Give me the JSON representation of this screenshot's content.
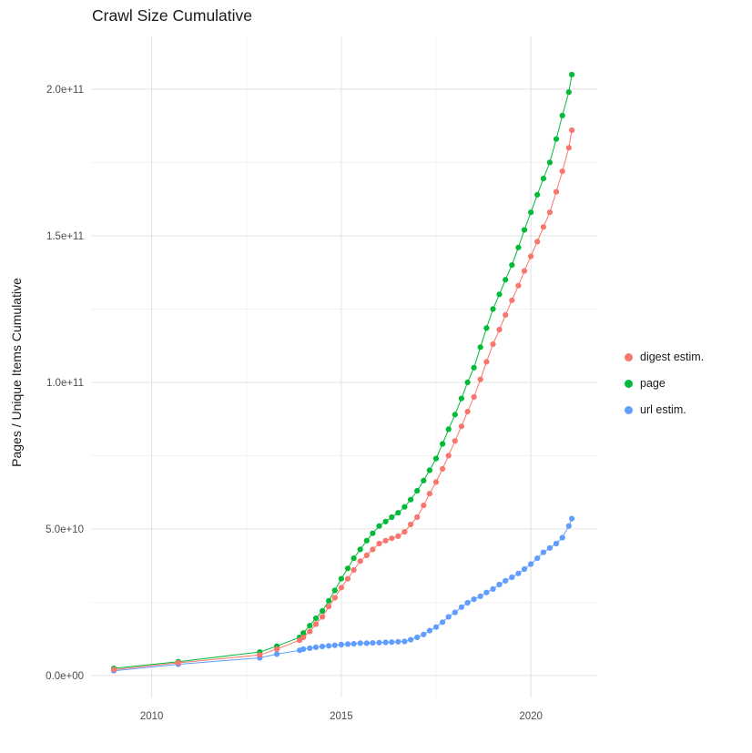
{
  "chart_data": {
    "type": "line",
    "title": "Crawl Size Cumulative",
    "xlabel": "",
    "ylabel": "Pages / Unique Items Cumulative",
    "x_ticks": [
      2010,
      2015,
      2020
    ],
    "x_tick_labels": [
      "2010",
      "2015",
      "2020"
    ],
    "x_minor": [
      2012.5,
      2017.5
    ],
    "y_ticks_e9": [
      0,
      50,
      100,
      150,
      200
    ],
    "y_tick_labels": [
      "0.0e+00",
      "5.0e+10",
      "1.0e+11",
      "1.5e+11",
      "2.0e+11"
    ],
    "y_minor_e9": [
      25,
      75,
      125,
      175
    ],
    "x_range": [
      2008.4,
      2021.75
    ],
    "y_range_e9": [
      -7.5,
      218
    ],
    "unit": "y values in units of 1e9 (billions of pages / unique items)",
    "grid": true,
    "grid_color": "#E4E4E4",
    "grid_minor_color": "#F0F0F0",
    "background": "#FFFFFF",
    "legend_position": "right",
    "series": [
      {
        "name": "digest estim.",
        "color": "#F8766D",
        "points": [
          [
            2009.0,
            2.0
          ],
          [
            2010.7,
            4.3
          ],
          [
            2012.85,
            7.0
          ],
          [
            2013.3,
            9.0
          ],
          [
            2013.9,
            12
          ],
          [
            2014.0,
            13
          ],
          [
            2014.17,
            15
          ],
          [
            2014.33,
            17.5
          ],
          [
            2014.5,
            20
          ],
          [
            2014.67,
            23.5
          ],
          [
            2014.83,
            26.5
          ],
          [
            2015.0,
            30
          ],
          [
            2015.17,
            33
          ],
          [
            2015.33,
            36
          ],
          [
            2015.5,
            39
          ],
          [
            2015.67,
            41
          ],
          [
            2015.83,
            43
          ],
          [
            2016.0,
            45
          ],
          [
            2016.17,
            46
          ],
          [
            2016.33,
            46.8
          ],
          [
            2016.5,
            47.5
          ],
          [
            2016.67,
            49
          ],
          [
            2016.83,
            51.5
          ],
          [
            2017.0,
            54
          ],
          [
            2017.17,
            58
          ],
          [
            2017.33,
            62
          ],
          [
            2017.5,
            66
          ],
          [
            2017.67,
            70.5
          ],
          [
            2017.83,
            75
          ],
          [
            2018.0,
            80
          ],
          [
            2018.17,
            85
          ],
          [
            2018.33,
            90
          ],
          [
            2018.5,
            95
          ],
          [
            2018.67,
            101
          ],
          [
            2018.83,
            107
          ],
          [
            2019.0,
            113
          ],
          [
            2019.17,
            118
          ],
          [
            2019.33,
            123
          ],
          [
            2019.5,
            128
          ],
          [
            2019.67,
            133
          ],
          [
            2019.83,
            138
          ],
          [
            2020.0,
            143
          ],
          [
            2020.17,
            148
          ],
          [
            2020.33,
            153
          ],
          [
            2020.5,
            158
          ],
          [
            2020.67,
            165
          ],
          [
            2020.83,
            172
          ],
          [
            2021.0,
            180
          ],
          [
            2021.08,
            186
          ]
        ]
      },
      {
        "name": "page",
        "color": "#00BA38",
        "points": [
          [
            2009.0,
            2.4
          ],
          [
            2010.7,
            4.7
          ],
          [
            2012.85,
            8.0
          ],
          [
            2013.3,
            10.0
          ],
          [
            2013.9,
            13
          ],
          [
            2014.0,
            14.5
          ],
          [
            2014.17,
            17
          ],
          [
            2014.33,
            19.5
          ],
          [
            2014.5,
            22
          ],
          [
            2014.67,
            25.5
          ],
          [
            2014.83,
            29
          ],
          [
            2015.0,
            33
          ],
          [
            2015.17,
            36.5
          ],
          [
            2015.33,
            40
          ],
          [
            2015.5,
            43
          ],
          [
            2015.67,
            46
          ],
          [
            2015.83,
            48.5
          ],
          [
            2016.0,
            51
          ],
          [
            2016.17,
            52.5
          ],
          [
            2016.33,
            54
          ],
          [
            2016.5,
            55.5
          ],
          [
            2016.67,
            57.5
          ],
          [
            2016.83,
            60
          ],
          [
            2017.0,
            63
          ],
          [
            2017.17,
            66.5
          ],
          [
            2017.33,
            70
          ],
          [
            2017.5,
            74
          ],
          [
            2017.67,
            79
          ],
          [
            2017.83,
            84
          ],
          [
            2018.0,
            89
          ],
          [
            2018.17,
            94.5
          ],
          [
            2018.33,
            100
          ],
          [
            2018.5,
            105
          ],
          [
            2018.67,
            112
          ],
          [
            2018.83,
            118.5
          ],
          [
            2019.0,
            125
          ],
          [
            2019.17,
            130
          ],
          [
            2019.33,
            135
          ],
          [
            2019.5,
            140
          ],
          [
            2019.67,
            146
          ],
          [
            2019.83,
            152
          ],
          [
            2020.0,
            158
          ],
          [
            2020.17,
            164
          ],
          [
            2020.33,
            169.5
          ],
          [
            2020.5,
            175
          ],
          [
            2020.67,
            183
          ],
          [
            2020.83,
            191
          ],
          [
            2021.0,
            199
          ],
          [
            2021.08,
            205
          ]
        ]
      },
      {
        "name": "url estim.",
        "color": "#619CFF",
        "points": [
          [
            2009.0,
            1.6
          ],
          [
            2010.7,
            3.8
          ],
          [
            2012.85,
            6.0
          ],
          [
            2013.3,
            7.3
          ],
          [
            2013.9,
            8.6
          ],
          [
            2014.0,
            9.0
          ],
          [
            2014.17,
            9.3
          ],
          [
            2014.33,
            9.6
          ],
          [
            2014.5,
            9.9
          ],
          [
            2014.67,
            10.1
          ],
          [
            2014.83,
            10.3
          ],
          [
            2015.0,
            10.5
          ],
          [
            2015.17,
            10.7
          ],
          [
            2015.33,
            10.8
          ],
          [
            2015.5,
            11.0
          ],
          [
            2015.67,
            11.0
          ],
          [
            2015.83,
            11.1
          ],
          [
            2016.0,
            11.2
          ],
          [
            2016.17,
            11.3
          ],
          [
            2016.33,
            11.4
          ],
          [
            2016.5,
            11.5
          ],
          [
            2016.67,
            11.6
          ],
          [
            2016.83,
            12.2
          ],
          [
            2017.0,
            13.0
          ],
          [
            2017.17,
            14.0
          ],
          [
            2017.33,
            15.3
          ],
          [
            2017.5,
            16.5
          ],
          [
            2017.67,
            18.2
          ],
          [
            2017.83,
            20.0
          ],
          [
            2018.0,
            21.5
          ],
          [
            2018.17,
            23.3
          ],
          [
            2018.33,
            24.8
          ],
          [
            2018.5,
            26.0
          ],
          [
            2018.67,
            27.0
          ],
          [
            2018.83,
            28.3
          ],
          [
            2019.0,
            29.5
          ],
          [
            2019.17,
            31.0
          ],
          [
            2019.33,
            32.3
          ],
          [
            2019.5,
            33.5
          ],
          [
            2019.67,
            34.8
          ],
          [
            2019.83,
            36.3
          ],
          [
            2020.0,
            38.0
          ],
          [
            2020.17,
            40.0
          ],
          [
            2020.33,
            42.0
          ],
          [
            2020.5,
            43.5
          ],
          [
            2020.67,
            45.0
          ],
          [
            2020.83,
            47.0
          ],
          [
            2021.0,
            51.0
          ],
          [
            2021.08,
            53.5
          ]
        ]
      }
    ]
  }
}
